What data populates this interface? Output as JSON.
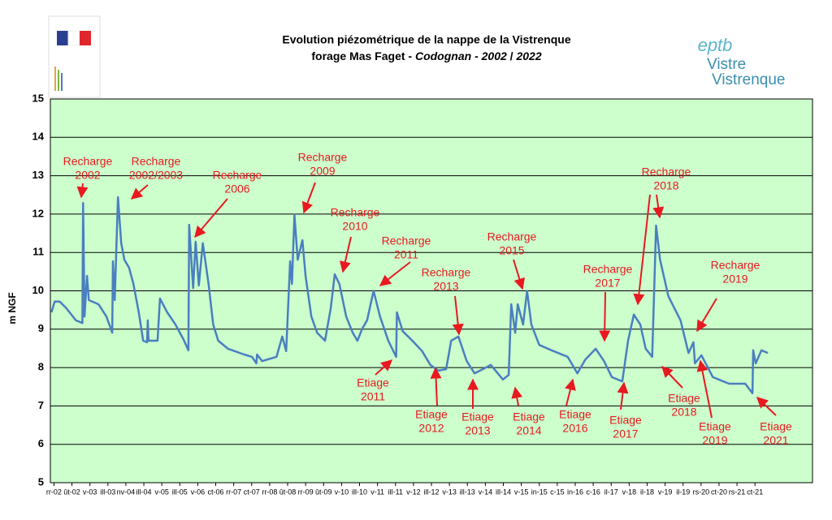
{
  "chart_data": {
    "type": "line",
    "title": "Evolution piézométrique de la nappe de la Vistrenque",
    "subtitle_parts": [
      {
        "text": "forage Mas Faget - "
      },
      {
        "text": "Codognan",
        "italic": true
      },
      {
        "text": " - "
      },
      {
        "text": "2002",
        "italic": true
      },
      {
        "text": " / "
      },
      {
        "text": "2022",
        "italic": true
      }
    ],
    "y_label": "m NGF",
    "logo_text": [
      "eptb",
      "Vistre",
      "Vistrenque"
    ],
    "ylim": [
      5,
      15
    ],
    "yticks": [
      5,
      6,
      7,
      8,
      9,
      10,
      11,
      12,
      13,
      14,
      15
    ],
    "grid": true,
    "xlim": [
      2002,
      2023.2
    ],
    "xticks": [
      {
        "value": 2002.1,
        "label": "rr-02"
      },
      {
        "value": 2002.6,
        "label": "ût-02"
      },
      {
        "value": 2003.1,
        "label": "v-03"
      },
      {
        "value": 2003.6,
        "label": "ill-03"
      },
      {
        "value": 2004.1,
        "label": "nv-04"
      },
      {
        "value": 2004.6,
        "label": "ill-04"
      },
      {
        "value": 2005.1,
        "label": "v-05"
      },
      {
        "value": 2005.6,
        "label": "ill-05"
      },
      {
        "value": 2006.1,
        "label": "v-06"
      },
      {
        "value": 2006.6,
        "label": "ct-06"
      },
      {
        "value": 2007.1,
        "label": "rr-07"
      },
      {
        "value": 2007.6,
        "label": "ct-07"
      },
      {
        "value": 2008.1,
        "label": "rr-08"
      },
      {
        "value": 2008.6,
        "label": "ût-08"
      },
      {
        "value": 2009.1,
        "label": "rr-09"
      },
      {
        "value": 2009.6,
        "label": "ût-09"
      },
      {
        "value": 2010.1,
        "label": "v-10"
      },
      {
        "value": 2010.6,
        "label": "ill-10"
      },
      {
        "value": 2011.1,
        "label": "v-11"
      },
      {
        "value": 2011.6,
        "label": "ill-11"
      },
      {
        "value": 2012.1,
        "label": "v-12"
      },
      {
        "value": 2012.6,
        "label": "ill-12"
      },
      {
        "value": 2013.1,
        "label": "v-13"
      },
      {
        "value": 2013.6,
        "label": "ill-13"
      },
      {
        "value": 2014.1,
        "label": "v-14"
      },
      {
        "value": 2014.6,
        "label": "ill-14"
      },
      {
        "value": 2015.1,
        "label": "v-15"
      },
      {
        "value": 2015.6,
        "label": "in-15"
      },
      {
        "value": 2016.1,
        "label": "c-15"
      },
      {
        "value": 2016.6,
        "label": "in-16"
      },
      {
        "value": 2017.1,
        "label": "c-16"
      },
      {
        "value": 2017.6,
        "label": "il-17"
      },
      {
        "value": 2018.1,
        "label": "v-18"
      },
      {
        "value": 2018.6,
        "label": "il-18"
      },
      {
        "value": 2019.1,
        "label": "v-19"
      },
      {
        "value": 2019.6,
        "label": "il-19"
      },
      {
        "value": 2020.1,
        "label": "rs-20"
      },
      {
        "value": 2020.6,
        "label": "ct-20"
      },
      {
        "value": 2021.1,
        "label": "rs-21"
      },
      {
        "value": 2021.6,
        "label": "ct-21"
      }
    ],
    "x": [
      2002.03,
      2002.12,
      2002.26,
      2002.44,
      2002.71,
      2002.89,
      2002.91,
      2002.95,
      2003.02,
      2003.07,
      2003.34,
      2003.56,
      2003.72,
      2003.74,
      2003.79,
      2003.88,
      2003.97,
      2004.06,
      2004.19,
      2004.31,
      2004.46,
      2004.58,
      2004.69,
      2004.71,
      2004.73,
      2004.87,
      2004.98,
      2005.05,
      2005.25,
      2005.48,
      2005.7,
      2005.84,
      2005.86,
      2005.97,
      2006.04,
      2006.13,
      2006.24,
      2006.4,
      2006.53,
      2006.67,
      2006.94,
      2007.39,
      2007.61,
      2007.73,
      2007.75,
      2007.89,
      2008.29,
      2008.45,
      2008.56,
      2008.67,
      2008.72,
      2008.79,
      2008.88,
      2009.01,
      2009.1,
      2009.26,
      2009.42,
      2009.64,
      2009.8,
      2009.91,
      2010.04,
      2010.23,
      2010.41,
      2010.54,
      2010.68,
      2010.81,
      2010.99,
      2011.17,
      2011.4,
      2011.62,
      2011.64,
      2011.8,
      2012.07,
      2012.34,
      2012.57,
      2012.79,
      2013.01,
      2013.15,
      2013.35,
      2013.58,
      2013.8,
      2014.03,
      2014.25,
      2014.59,
      2014.75,
      2014.82,
      2014.93,
      2015.0,
      2015.15,
      2015.26,
      2015.38,
      2015.6,
      2015.94,
      2016.39,
      2016.66,
      2016.88,
      2017.17,
      2017.4,
      2017.62,
      2017.91,
      2018.07,
      2018.23,
      2018.41,
      2018.56,
      2018.74,
      2018.85,
      2018.96,
      2019.19,
      2019.53,
      2019.75,
      2019.89,
      2019.93,
      2020.11,
      2020.43,
      2020.88,
      2021.33,
      2021.53,
      2021.55,
      2021.62,
      2021.78,
      2021.96
    ],
    "series": [
      {
        "name": "forage Mas Faget",
        "color": "#4a7fc0",
        "values": [
          9.44,
          9.72,
          9.72,
          9.55,
          9.23,
          9.16,
          12.29,
          9.33,
          10.39,
          9.76,
          9.65,
          9.33,
          8.91,
          10.77,
          9.76,
          12.44,
          11.24,
          10.81,
          10.6,
          10.18,
          9.44,
          8.7,
          8.66,
          9.23,
          8.7,
          8.7,
          8.7,
          9.8,
          9.44,
          9.12,
          8.74,
          8.45,
          11.72,
          10.07,
          11.28,
          10.14,
          11.24,
          10.18,
          9.12,
          8.7,
          8.49,
          8.34,
          8.28,
          8.11,
          8.34,
          8.17,
          8.28,
          8.81,
          8.43,
          10.77,
          10.18,
          11.98,
          10.81,
          11.32,
          10.39,
          9.33,
          8.91,
          8.7,
          9.55,
          10.43,
          10.18,
          9.33,
          8.91,
          8.7,
          9.02,
          9.23,
          10.0,
          9.33,
          8.7,
          8.28,
          9.44,
          8.95,
          8.7,
          8.43,
          8.07,
          7.92,
          7.96,
          8.7,
          8.81,
          8.17,
          7.85,
          7.96,
          8.07,
          7.69,
          7.81,
          9.65,
          8.91,
          9.65,
          9.12,
          10.0,
          9.12,
          8.59,
          8.45,
          8.28,
          7.85,
          8.21,
          8.49,
          8.17,
          7.75,
          7.64,
          8.7,
          9.38,
          9.12,
          8.49,
          8.28,
          11.7,
          10.81,
          9.86,
          9.23,
          8.38,
          8.66,
          8.11,
          8.32,
          7.75,
          7.58,
          7.58,
          7.33,
          8.45,
          8.11,
          8.45,
          8.38
        ]
      }
    ],
    "annotations": [
      [
        "Recharge",
        "2002"
      ],
      [
        "Recharge",
        "2002/2003"
      ],
      [
        "Recharge",
        "2006"
      ],
      [
        "Recharge",
        "2009"
      ],
      [
        "Recharge",
        "2010"
      ],
      [
        "Recharge",
        "2011"
      ],
      [
        "Recharge",
        "2013"
      ],
      [
        "Recharge",
        "2015"
      ],
      [
        "Recharge",
        "2017"
      ],
      [
        "Recharge",
        "2018"
      ],
      [
        "Recharge",
        "2019"
      ],
      [
        "Etiage",
        "2011"
      ],
      [
        "Etiage",
        "2012"
      ],
      [
        "Etiage",
        "2013"
      ],
      [
        "Etiage",
        "2014"
      ],
      [
        "Etiage",
        "2016"
      ],
      [
        "Etiage",
        "2017"
      ],
      [
        "Etiage",
        "2018"
      ],
      [
        "Etiage",
        "2019"
      ],
      [
        "Etiage",
        "2021"
      ]
    ],
    "annotation_color": "#e8191f"
  }
}
